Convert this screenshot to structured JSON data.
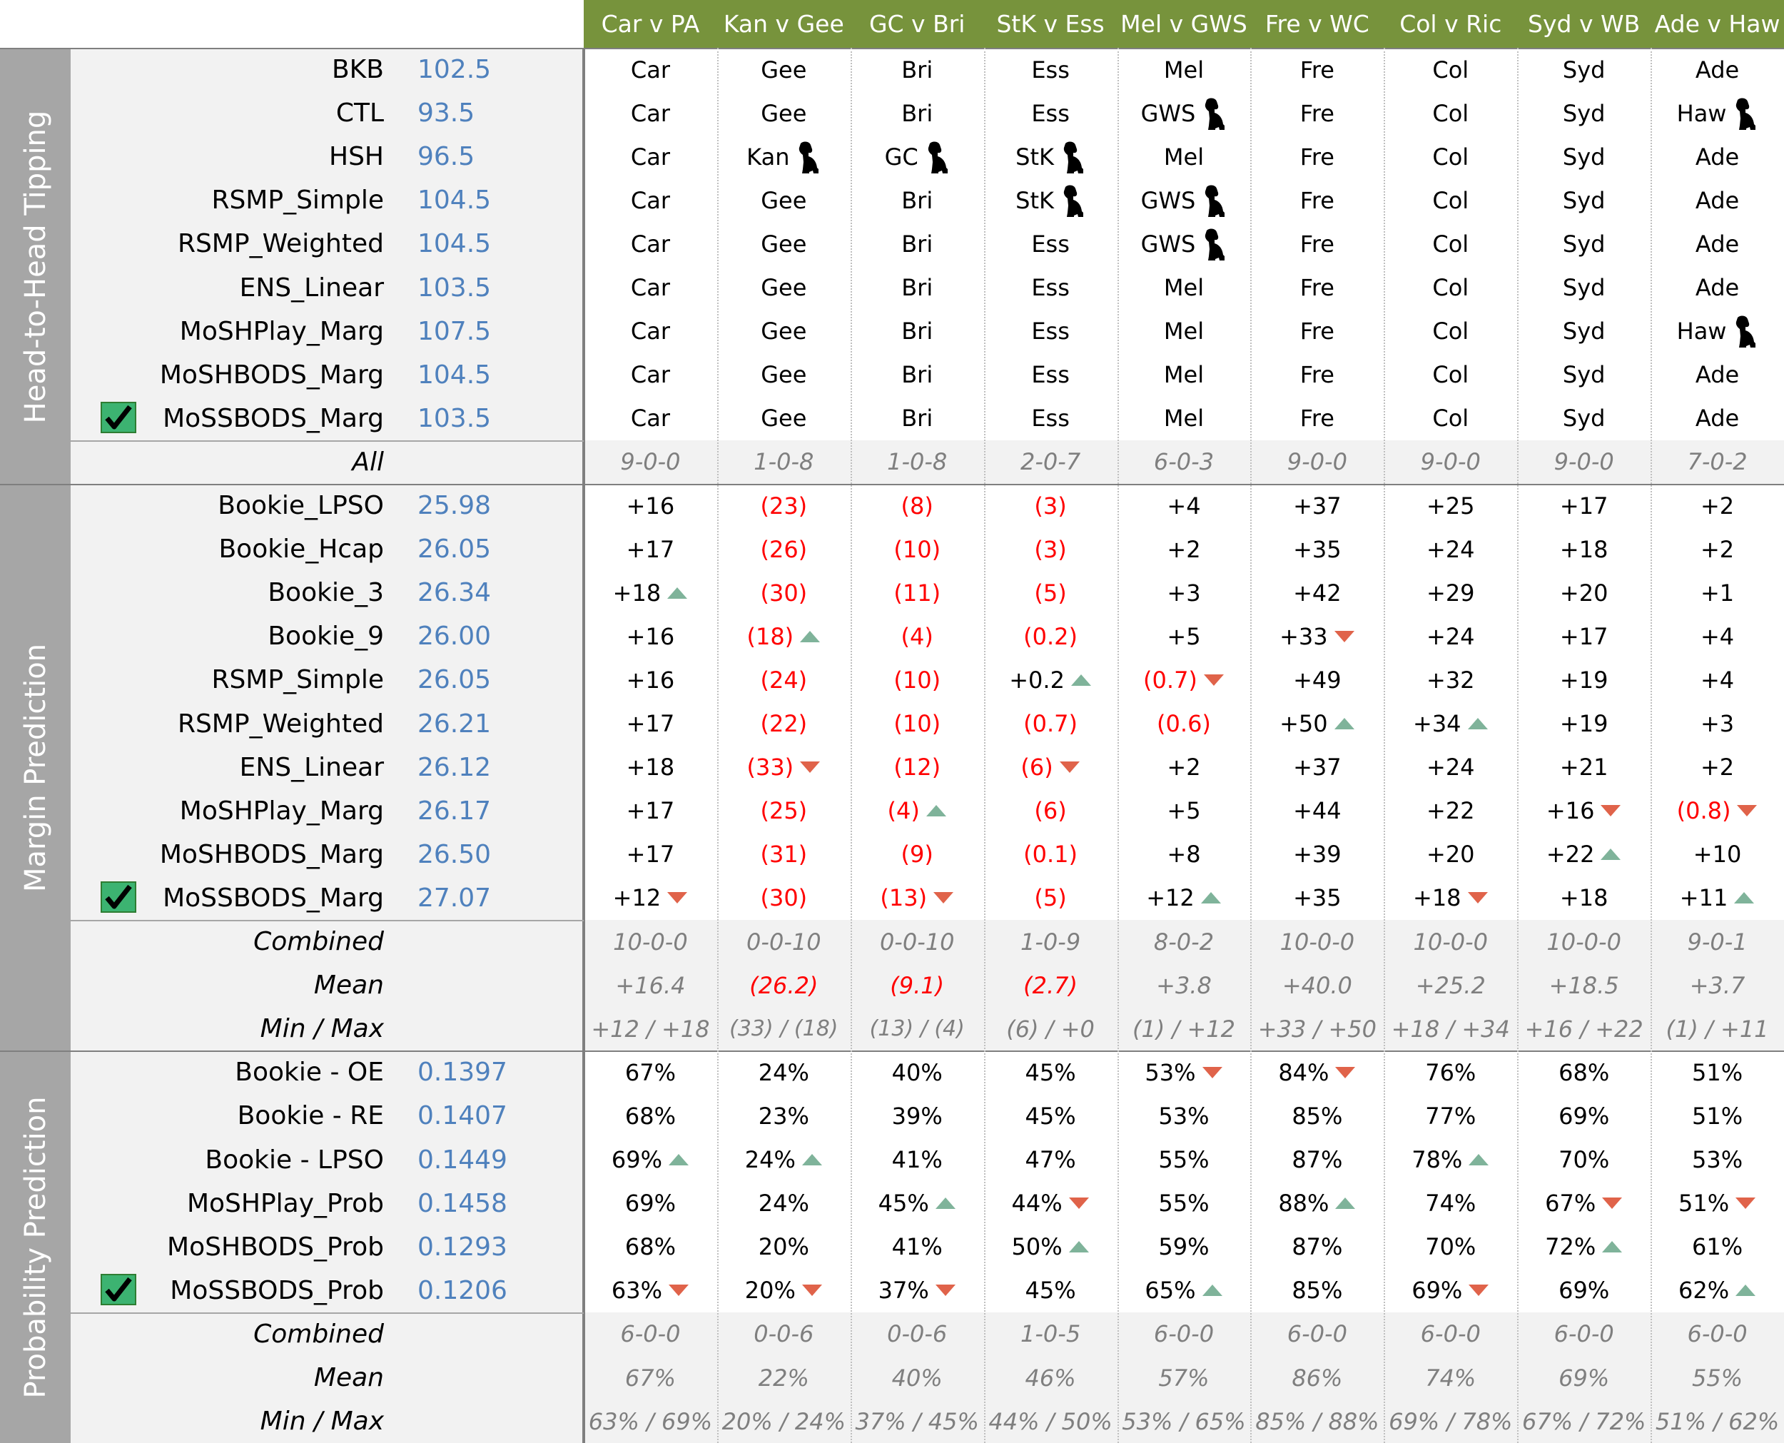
{
  "header": {
    "games": [
      "Car v PA",
      "Kan v Gee",
      "GC v Bri",
      "StK v Ess",
      "Mel v GWS",
      "Fre v WC",
      "Col v Ric",
      "Syd v WB",
      "Ade v Haw"
    ]
  },
  "sections": [
    {
      "title": "Head-to-Head Tipping",
      "rows": [
        {
          "name": "BKB",
          "score": "102.5",
          "cells": [
            "Car",
            "Gee",
            "Bri",
            "Ess",
            "Mel",
            "Fre",
            "Col",
            "Syd",
            "Ade"
          ],
          "flags": [
            null,
            null,
            null,
            null,
            null,
            null,
            null,
            null,
            null
          ]
        },
        {
          "name": "CTL",
          "score": "93.5",
          "cells": [
            "Car",
            "Gee",
            "Bri",
            "Ess",
            "GWS",
            "Fre",
            "Col",
            "Syd",
            "Haw"
          ],
          "flags": [
            null,
            null,
            null,
            null,
            "dog",
            null,
            null,
            null,
            "dog"
          ]
        },
        {
          "name": "HSH",
          "score": "96.5",
          "cells": [
            "Car",
            "Kan",
            "GC",
            "StK",
            "Mel",
            "Fre",
            "Col",
            "Syd",
            "Ade"
          ],
          "flags": [
            null,
            "dog",
            "dog",
            "dog",
            null,
            null,
            null,
            null,
            null
          ]
        },
        {
          "name": "RSMP_Simple",
          "score": "104.5",
          "cells": [
            "Car",
            "Gee",
            "Bri",
            "StK",
            "GWS",
            "Fre",
            "Col",
            "Syd",
            "Ade"
          ],
          "flags": [
            null,
            null,
            null,
            "dog",
            "dog",
            null,
            null,
            null,
            null
          ]
        },
        {
          "name": "RSMP_Weighted",
          "score": "104.5",
          "cells": [
            "Car",
            "Gee",
            "Bri",
            "Ess",
            "GWS",
            "Fre",
            "Col",
            "Syd",
            "Ade"
          ],
          "flags": [
            null,
            null,
            null,
            null,
            "dog",
            null,
            null,
            null,
            null
          ]
        },
        {
          "name": "ENS_Linear",
          "score": "103.5",
          "cells": [
            "Car",
            "Gee",
            "Bri",
            "Ess",
            "Mel",
            "Fre",
            "Col",
            "Syd",
            "Ade"
          ],
          "flags": [
            null,
            null,
            null,
            null,
            null,
            null,
            null,
            null,
            null
          ]
        },
        {
          "name": "MoSHPlay_Marg",
          "score": "107.5",
          "cells": [
            "Car",
            "Gee",
            "Bri",
            "Ess",
            "Mel",
            "Fre",
            "Col",
            "Syd",
            "Haw"
          ],
          "flags": [
            null,
            null,
            null,
            null,
            null,
            null,
            null,
            null,
            "dog"
          ]
        },
        {
          "name": "MoSHBODS_Marg",
          "score": "104.5",
          "cells": [
            "Car",
            "Gee",
            "Bri",
            "Ess",
            "Mel",
            "Fre",
            "Col",
            "Syd",
            "Ade"
          ],
          "flags": [
            null,
            null,
            null,
            null,
            null,
            null,
            null,
            null,
            null
          ]
        },
        {
          "name": "MoSSBODS_Marg",
          "score": "103.5",
          "best": true,
          "cells": [
            "Car",
            "Gee",
            "Bri",
            "Ess",
            "Mel",
            "Fre",
            "Col",
            "Syd",
            "Ade"
          ],
          "flags": [
            null,
            null,
            null,
            null,
            null,
            null,
            null,
            null,
            null
          ]
        }
      ],
      "summary": [
        {
          "label": "All",
          "cells": [
            "9-0-0",
            "1-0-8",
            "1-0-8",
            "2-0-7",
            "6-0-3",
            "9-0-0",
            "9-0-0",
            "9-0-0",
            "7-0-2"
          ]
        }
      ]
    },
    {
      "title": "Margin Prediction",
      "rows": [
        {
          "name": "Bookie_LPSO",
          "score": "25.98",
          "cells": [
            "+16",
            "(23)",
            "(8)",
            "(3)",
            "+4",
            "+37",
            "+25",
            "+17",
            "+2"
          ],
          "flags": [
            null,
            null,
            null,
            null,
            null,
            null,
            null,
            null,
            null
          ]
        },
        {
          "name": "Bookie_Hcap",
          "score": "26.05",
          "cells": [
            "+17",
            "(26)",
            "(10)",
            "(3)",
            "+2",
            "+35",
            "+24",
            "+18",
            "+2"
          ],
          "flags": [
            null,
            null,
            null,
            null,
            null,
            null,
            null,
            null,
            null
          ]
        },
        {
          "name": "Bookie_3",
          "score": "26.34",
          "cells": [
            "+18",
            "(30)",
            "(11)",
            "(5)",
            "+3",
            "+42",
            "+29",
            "+20",
            "+1"
          ],
          "flags": [
            "up",
            null,
            null,
            null,
            null,
            null,
            null,
            null,
            null
          ]
        },
        {
          "name": "Bookie_9",
          "score": "26.00",
          "cells": [
            "+16",
            "(18)",
            "(4)",
            "(0.2)",
            "+5",
            "+33",
            "+24",
            "+17",
            "+4"
          ],
          "flags": [
            null,
            "up",
            null,
            null,
            null,
            "down",
            null,
            null,
            null
          ]
        },
        {
          "name": "RSMP_Simple",
          "score": "26.05",
          "cells": [
            "+16",
            "(24)",
            "(10)",
            "+0.2",
            "(0.7)",
            "+49",
            "+32",
            "+19",
            "+4"
          ],
          "flags": [
            null,
            null,
            null,
            "up",
            "down",
            null,
            null,
            null,
            null
          ]
        },
        {
          "name": "RSMP_Weighted",
          "score": "26.21",
          "cells": [
            "+17",
            "(22)",
            "(10)",
            "(0.7)",
            "(0.6)",
            "+50",
            "+34",
            "+19",
            "+3"
          ],
          "flags": [
            null,
            null,
            null,
            null,
            null,
            "up",
            "up",
            null,
            null
          ]
        },
        {
          "name": "ENS_Linear",
          "score": "26.12",
          "cells": [
            "+18",
            "(33)",
            "(12)",
            "(6)",
            "+2",
            "+37",
            "+24",
            "+21",
            "+2"
          ],
          "flags": [
            null,
            "down",
            null,
            "down",
            null,
            null,
            null,
            null,
            null
          ]
        },
        {
          "name": "MoSHPlay_Marg",
          "score": "26.17",
          "cells": [
            "+17",
            "(25)",
            "(4)",
            "(6)",
            "+5",
            "+44",
            "+22",
            "+16",
            "(0.8)"
          ],
          "flags": [
            null,
            null,
            "up",
            null,
            null,
            null,
            null,
            "down",
            "down"
          ]
        },
        {
          "name": "MoSHBODS_Marg",
          "score": "26.50",
          "cells": [
            "+17",
            "(31)",
            "(9)",
            "(0.1)",
            "+8",
            "+39",
            "+20",
            "+22",
            "+10"
          ],
          "flags": [
            null,
            null,
            null,
            null,
            null,
            null,
            null,
            "up",
            null
          ]
        },
        {
          "name": "MoSSBODS_Marg",
          "score": "27.07",
          "best": true,
          "cells": [
            "+12",
            "(30)",
            "(13)",
            "(5)",
            "+12",
            "+35",
            "+18",
            "+18",
            "+11"
          ],
          "flags": [
            "down",
            null,
            "down",
            null,
            "up",
            null,
            "down",
            null,
            "up"
          ]
        }
      ],
      "summary": [
        {
          "label": "Combined",
          "cells": [
            "10-0-0",
            "0-0-10",
            "0-0-10",
            "1-0-9",
            "8-0-2",
            "10-0-0",
            "10-0-0",
            "10-0-0",
            "9-0-1"
          ]
        },
        {
          "label": "Mean",
          "cells": [
            "+16.4",
            "(26.2)",
            "(9.1)",
            "(2.7)",
            "+3.8",
            "+40.0",
            "+25.2",
            "+18.5",
            "+3.7"
          ]
        },
        {
          "label": "Min / Max",
          "cells": [
            "+12 / +18",
            "(33) / (18)",
            "(13) / (4)",
            "(6) / +0",
            "(1) / +12",
            "+33 / +50",
            "+18 / +34",
            "+16 / +22",
            "(1) / +11"
          ]
        }
      ]
    },
    {
      "title": "Probability Prediction",
      "rows": [
        {
          "name": "Bookie - OE",
          "score": "0.1397",
          "cells": [
            "67%",
            "24%",
            "40%",
            "45%",
            "53%",
            "84%",
            "76%",
            "68%",
            "51%"
          ],
          "flags": [
            null,
            null,
            null,
            null,
            "down",
            "down",
            null,
            null,
            null
          ]
        },
        {
          "name": "Bookie - RE",
          "score": "0.1407",
          "cells": [
            "68%",
            "23%",
            "39%",
            "45%",
            "53%",
            "85%",
            "77%",
            "69%",
            "51%"
          ],
          "flags": [
            null,
            null,
            null,
            null,
            null,
            null,
            null,
            null,
            null
          ]
        },
        {
          "name": "Bookie - LPSO",
          "score": "0.1449",
          "cells": [
            "69%",
            "24%",
            "41%",
            "47%",
            "55%",
            "87%",
            "78%",
            "70%",
            "53%"
          ],
          "flags": [
            "up",
            "up",
            null,
            null,
            null,
            null,
            "up",
            null,
            null
          ]
        },
        {
          "name": "MoSHPlay_Prob",
          "score": "0.1458",
          "cells": [
            "69%",
            "24%",
            "45%",
            "44%",
            "55%",
            "88%",
            "74%",
            "67%",
            "51%"
          ],
          "flags": [
            null,
            null,
            "up",
            "down",
            null,
            "up",
            null,
            "down",
            "down"
          ]
        },
        {
          "name": "MoSHBODS_Prob",
          "score": "0.1293",
          "cells": [
            "68%",
            "20%",
            "41%",
            "50%",
            "59%",
            "87%",
            "70%",
            "72%",
            "61%"
          ],
          "flags": [
            null,
            null,
            null,
            "up",
            null,
            null,
            null,
            "up",
            null
          ]
        },
        {
          "name": "MoSSBODS_Prob",
          "score": "0.1206",
          "best": true,
          "cells": [
            "63%",
            "20%",
            "37%",
            "45%",
            "65%",
            "85%",
            "69%",
            "69%",
            "62%"
          ],
          "flags": [
            "down",
            "down",
            "down",
            null,
            "up",
            null,
            "down",
            null,
            "up"
          ]
        }
      ],
      "summary": [
        {
          "label": "Combined",
          "cells": [
            "6-0-0",
            "0-0-6",
            "0-0-6",
            "1-0-5",
            "6-0-0",
            "6-0-0",
            "6-0-0",
            "6-0-0",
            "6-0-0"
          ]
        },
        {
          "label": "Mean",
          "cells": [
            "67%",
            "22%",
            "40%",
            "46%",
            "57%",
            "86%",
            "74%",
            "69%",
            "55%"
          ]
        },
        {
          "label": "Min / Max",
          "cells": [
            "63% / 69%",
            "20% / 24%",
            "37% / 45%",
            "44% / 50%",
            "53% / 65%",
            "85% / 88%",
            "69% / 78%",
            "67% / 72%",
            "51% / 62%"
          ]
        }
      ]
    }
  ]
}
